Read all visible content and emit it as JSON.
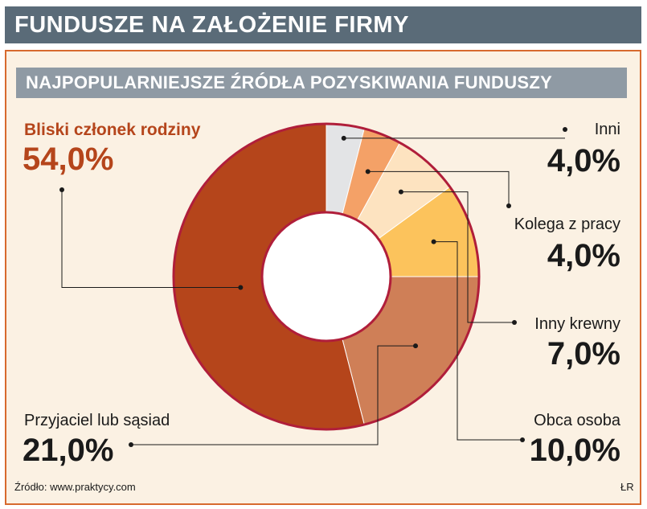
{
  "header": {
    "title": "FUNDUSZE NA ZAŁOŻENIE FIRMY"
  },
  "chart_data": {
    "type": "pie",
    "donut": true,
    "title": "NAJPOPULARNIEJSZE ŹRÓDŁA POZYSKIWANIA FUNDUSZY",
    "slices": [
      {
        "label": "Inni",
        "value": 4.0,
        "value_label": "4,0%",
        "color": "#e3e4e6"
      },
      {
        "label": "Kolega z pracy",
        "value": 4.0,
        "value_label": "4,0%",
        "color": "#f4a167"
      },
      {
        "label": "Inny krewny",
        "value": 7.0,
        "value_label": "7,0%",
        "color": "#fde3c0"
      },
      {
        "label": "Obca osoba",
        "value": 10.0,
        "value_label": "10,0%",
        "color": "#fcc35c"
      },
      {
        "label": "Przyjaciel lub sąsiad",
        "value": 21.0,
        "value_label": "21,0%",
        "color": "#cf7f57"
      },
      {
        "label": "Bliski członek rodziny",
        "value": 54.0,
        "value_label": "54,0%",
        "color": "#b5451b"
      }
    ],
    "outline_color": "#b01e3a"
  },
  "footer": {
    "source": "Źródło: www.praktycy.com",
    "author": "ŁR"
  }
}
